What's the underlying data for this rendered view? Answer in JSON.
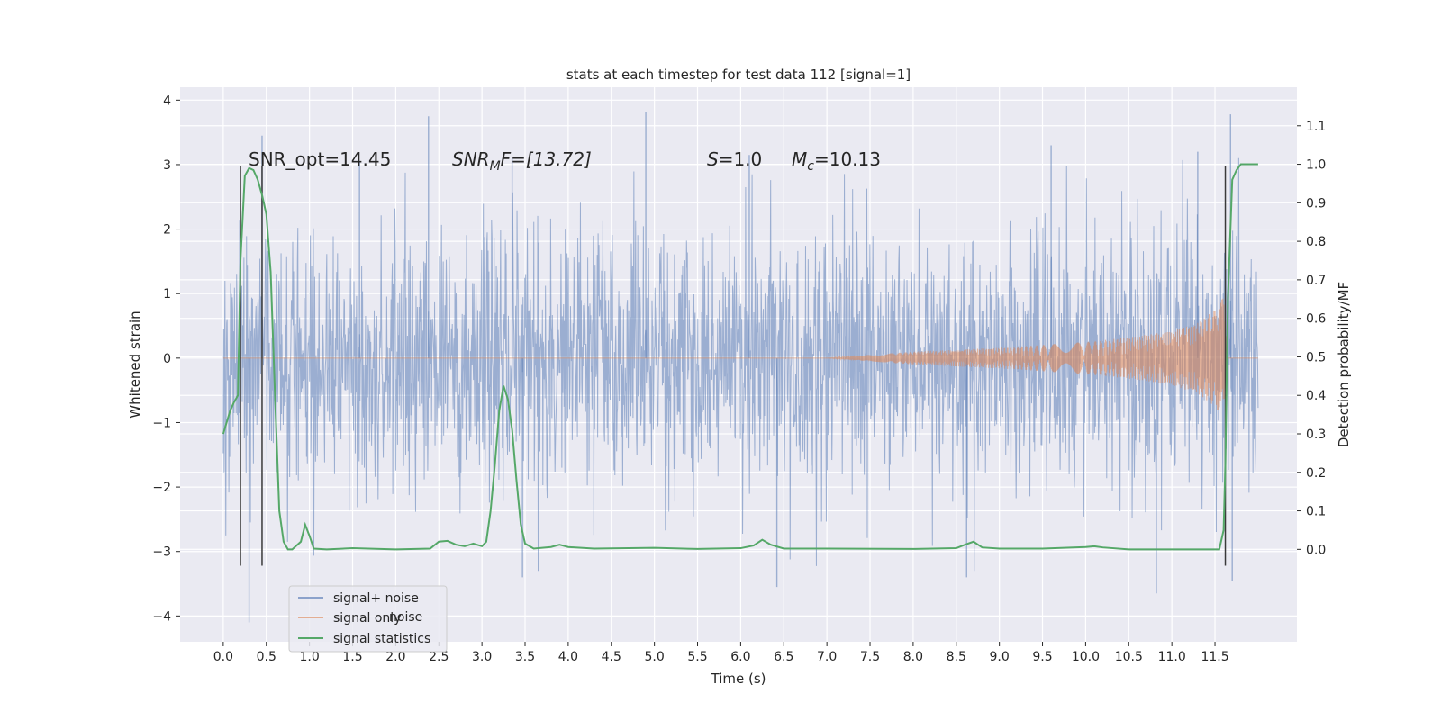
{
  "chart_data": {
    "type": "line",
    "title": "stats at each timestep for test data 112 [signal=1]",
    "xlabel": "Time (s)",
    "ylabel": "Whitened strain",
    "y2label": "Detection probability/MF",
    "xlim": [
      -0.5,
      12.45
    ],
    "ylim": [
      -4.4,
      4.2
    ],
    "y2lim": [
      -0.24,
      1.2
    ],
    "x_ticks": [
      0.0,
      0.5,
      1.0,
      1.5,
      2.0,
      2.5,
      3.0,
      3.5,
      4.0,
      4.5,
      5.0,
      5.5,
      6.0,
      6.5,
      7.0,
      7.5,
      8.0,
      8.5,
      9.0,
      9.5,
      10.0,
      10.5,
      11.0,
      11.5
    ],
    "x_tick_labels": [
      "0.0",
      "0.5",
      "1.0",
      "1.5",
      "2.0",
      "2.5",
      "3.0",
      "3.5",
      "4.0",
      "4.5",
      "5.0",
      "5.5",
      "6.0",
      "6.5",
      "7.0",
      "7.5",
      "8.0",
      "8.5",
      "9.0",
      "9.5",
      "10.0",
      "10.5",
      "11.0",
      "11.5"
    ],
    "y_ticks": [
      -4,
      -3,
      -2,
      -1,
      0,
      1,
      2,
      3,
      4
    ],
    "y_tick_labels": [
      "−4",
      "−3",
      "−2",
      "−1",
      "0",
      "1",
      "2",
      "3",
      "4"
    ],
    "y2_ticks": [
      0.0,
      0.1,
      0.2,
      0.3,
      0.4,
      0.5,
      0.6,
      0.7,
      0.8,
      0.9,
      1.0,
      1.1
    ],
    "y2_tick_labels": [
      "0.0",
      "0.1",
      "0.2",
      "0.3",
      "0.4",
      "0.5",
      "0.6",
      "0.7",
      "0.8",
      "0.9",
      "1.0",
      "1.1"
    ],
    "grid": true,
    "legend_position": "lower-left",
    "duration": 12.0,
    "series": [
      {
        "name": "signal+ noise",
        "color": "#4c72b0",
        "kind": "noise_band",
        "envelope_sigma": 1.0,
        "peaks": [
          {
            "x": 0.3,
            "y": -4.1
          },
          {
            "x": 2.38,
            "y": 3.75
          },
          {
            "x": 4.9,
            "y": 3.82
          },
          {
            "x": 6.42,
            "y": -3.55
          },
          {
            "x": 10.82,
            "y": -3.65
          },
          {
            "x": 11.68,
            "y": 3.78
          },
          {
            "x": 3.47,
            "y": -3.4
          },
          {
            "x": 8.62,
            "y": -3.4
          },
          {
            "x": 11.7,
            "y": -3.45
          },
          {
            "x": 0.45,
            "y": 3.45
          },
          {
            "x": 1.58,
            "y": 3.05
          },
          {
            "x": 3.35,
            "y": 3.1
          },
          {
            "x": 6.1,
            "y": 3.15
          },
          {
            "x": 9.6,
            "y": 3.3
          },
          {
            "x": 11.3,
            "y": 3.2
          }
        ]
      },
      {
        "name": "signal only",
        "color": "#dd8452",
        "kind": "chirp",
        "amplitude_at": [
          {
            "x": 7.0,
            "y": 0.0
          },
          {
            "x": 8.0,
            "y": 0.1
          },
          {
            "x": 9.0,
            "y": 0.16
          },
          {
            "x": 10.0,
            "y": 0.25
          },
          {
            "x": 10.5,
            "y": 0.32
          },
          {
            "x": 11.0,
            "y": 0.42
          },
          {
            "x": 11.3,
            "y": 0.55
          },
          {
            "x": 11.5,
            "y": 0.75
          },
          {
            "x": 11.6,
            "y": 0.95
          },
          {
            "x": 11.65,
            "y": 0.0
          }
        ]
      },
      {
        "name": "signal statistics",
        "color": "#55a868",
        "kind": "line",
        "x": [
          0.0,
          0.08,
          0.12,
          0.17,
          0.2,
          0.25,
          0.3,
          0.35,
          0.4,
          0.45,
          0.5,
          0.55,
          0.6,
          0.65,
          0.7,
          0.75,
          0.8,
          0.9,
          0.95,
          1.0,
          1.05,
          1.2,
          1.5,
          2.0,
          2.4,
          2.5,
          2.6,
          2.7,
          2.8,
          2.9,
          3.0,
          3.05,
          3.1,
          3.15,
          3.2,
          3.25,
          3.3,
          3.35,
          3.4,
          3.45,
          3.5,
          3.6,
          3.8,
          3.9,
          4.0,
          4.3,
          5.0,
          5.5,
          6.0,
          6.15,
          6.25,
          6.35,
          6.5,
          7.0,
          8.0,
          8.5,
          8.6,
          8.7,
          8.8,
          9.0,
          9.5,
          10.0,
          10.1,
          10.2,
          10.5,
          11.0,
          11.5,
          11.55,
          11.6,
          11.62,
          11.65,
          11.7,
          11.75,
          11.8,
          11.9,
          12.0
        ],
        "y": [
          0.3,
          0.36,
          0.38,
          0.4,
          0.75,
          0.97,
          0.99,
          0.985,
          0.96,
          0.92,
          0.87,
          0.72,
          0.4,
          0.1,
          0.02,
          0.0,
          0.0,
          0.02,
          0.064,
          0.035,
          0.002,
          0.0,
          0.003,
          0.0,
          0.002,
          0.02,
          0.022,
          0.012,
          0.008,
          0.015,
          0.008,
          0.02,
          0.1,
          0.22,
          0.36,
          0.425,
          0.39,
          0.31,
          0.18,
          0.065,
          0.015,
          0.002,
          0.006,
          0.012,
          0.006,
          0.002,
          0.004,
          0.001,
          0.003,
          0.01,
          0.025,
          0.012,
          0.002,
          0.002,
          0.001,
          0.003,
          0.012,
          0.02,
          0.005,
          0.002,
          0.002,
          0.006,
          0.008,
          0.005,
          0.0,
          0.0,
          0.0,
          0.0,
          0.05,
          0.22,
          0.65,
          0.96,
          0.985,
          1.0,
          1.0,
          1.0
        ]
      }
    ],
    "markers": [
      {
        "x": 0.2,
        "y_low": -3.22,
        "y_high": 2.98,
        "color": "#3a3a3a"
      },
      {
        "x": 0.45,
        "y_low": -3.22,
        "y_high": 2.98,
        "color": "#3a3a3a"
      },
      {
        "x": 11.62,
        "y_low": -3.22,
        "y_high": 2.98,
        "color": "#3a3a3a"
      }
    ],
    "annotations": {
      "snr_opt": "SNR_opt=14.45",
      "snr_mf_main": "SNR",
      "snr_mf_sub": "M",
      "snr_mf_rest": "F=[13.72]",
      "s_main": "S",
      "s_rest": "=1.0",
      "mc_main": "M",
      "mc_sub": "c",
      "mc_rest": "=10.13"
    },
    "legend_ghost_text": "noise",
    "colors": {
      "background": "#eaeaf2",
      "grid": "#ffffff"
    }
  }
}
